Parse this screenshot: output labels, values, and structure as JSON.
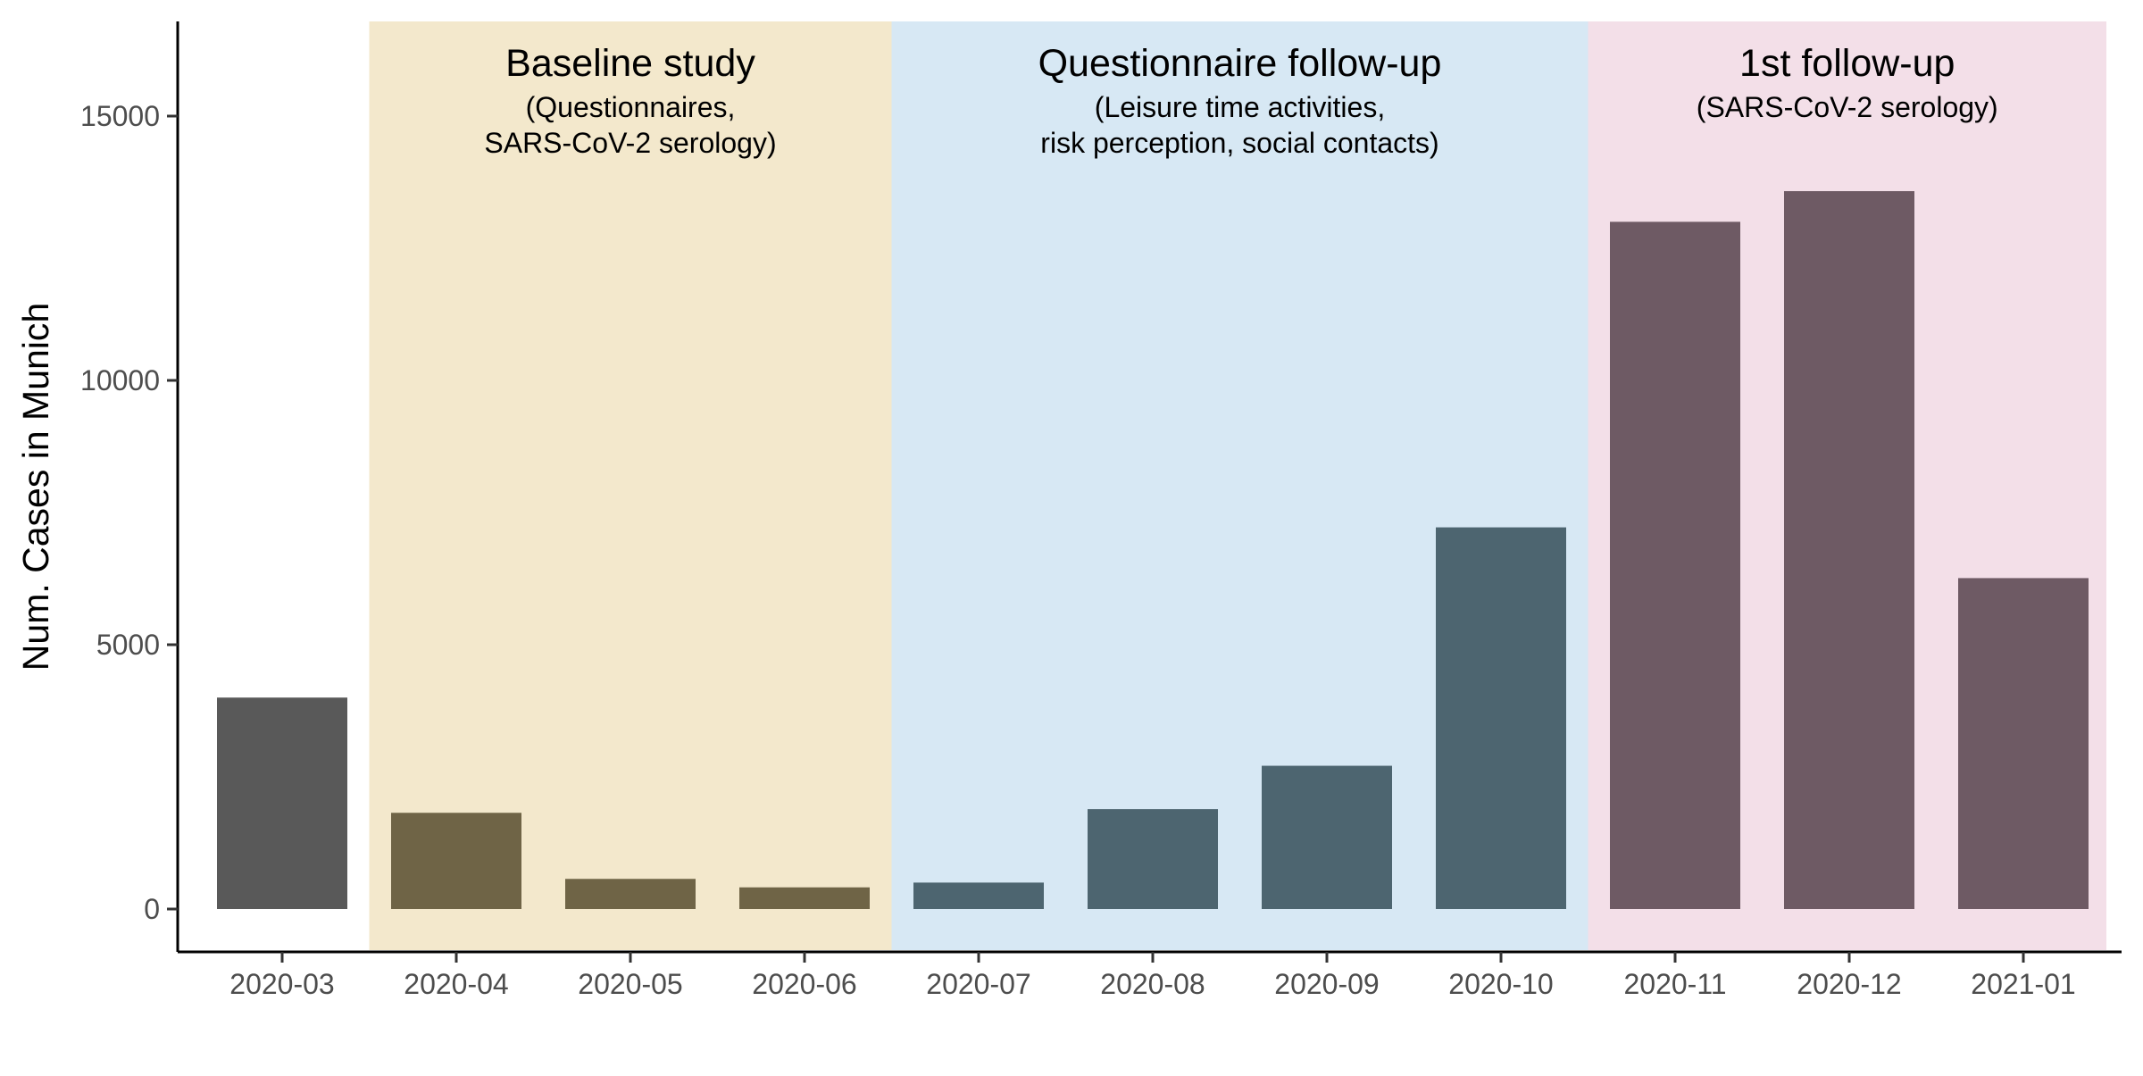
{
  "chart_data": {
    "type": "bar",
    "title": "",
    "xlabel": "",
    "ylabel": "Num. Cases in Munich",
    "ylim": [
      0,
      16700
    ],
    "yticks": [
      0,
      5000,
      10000,
      15000
    ],
    "grid": false,
    "categories": [
      "2020-03",
      "2020-04",
      "2020-05",
      "2020-06",
      "2020-07",
      "2020-08",
      "2020-09",
      "2020-10",
      "2020-11",
      "2020-12",
      "2021-01"
    ],
    "values": [
      4000,
      1820,
      570,
      410,
      500,
      1890,
      2710,
      7220,
      13000,
      13580,
      6260
    ],
    "bar_colors": [
      "#595959",
      "#6f6446",
      "#6f6446",
      "#6f6446",
      "#4d6570",
      "#4d6570",
      "#4d6570",
      "#4d6570",
      "#6e5a64",
      "#6e5a64",
      "#6e5a64"
    ],
    "phases": [
      {
        "title": "Baseline study",
        "subtitle": [
          "(Questionnaires,",
          "SARS-CoV-2 serology)"
        ],
        "from": "2020-04",
        "to": "2020-06",
        "color": "#f3e8cc"
      },
      {
        "title": "Questionnaire follow-up",
        "subtitle": [
          "(Leisure time activities,",
          "risk perception, social contacts)"
        ],
        "from": "2020-07",
        "to": "2020-10",
        "color": "#d7e8f4"
      },
      {
        "title": "1st follow-up",
        "subtitle": [
          "(SARS-CoV-2 serology)"
        ],
        "from": "2020-11",
        "to": "2021-01",
        "color": "#f3dfe8"
      }
    ],
    "legend": "none"
  }
}
